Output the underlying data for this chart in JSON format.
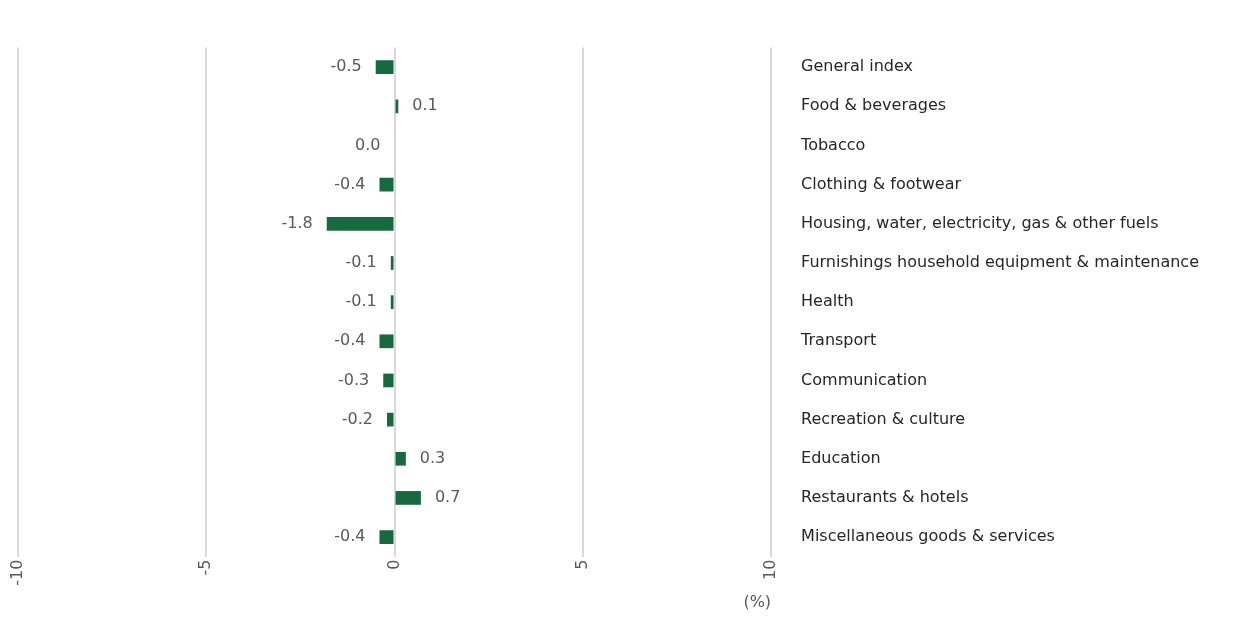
{
  "chart_data": {
    "type": "bar",
    "orientation": "horizontal",
    "xlabel": "(%)",
    "categories": [
      "General index",
      "Food & beverages",
      "Tobacco",
      "Clothing & footwear",
      "Housing, water, electricity, gas & other fuels",
      "Furnishings household equipment & maintenance",
      "Health",
      "Transport",
      "Communication",
      "Recreation & culture",
      "Education",
      "Restaurants & hotels",
      "Miscellaneous goods & services"
    ],
    "values": [
      -0.5,
      0.1,
      0.0,
      -0.4,
      -1.8,
      -0.1,
      -0.1,
      -0.4,
      -0.3,
      -0.2,
      0.3,
      0.7,
      -0.4
    ],
    "value_labels": [
      "-0.5",
      "0.1",
      "0.0",
      "-0.4",
      "-1.8",
      "-0.1",
      "-0.1",
      "-0.4",
      "-0.3",
      "-0.2",
      "0.3",
      "0.7",
      "-0.4"
    ],
    "color": "#17693f",
    "xlim": [
      -10,
      10
    ],
    "xticks": [
      -10,
      -5,
      0,
      5,
      10
    ],
    "grid": "x",
    "legend": false
  }
}
